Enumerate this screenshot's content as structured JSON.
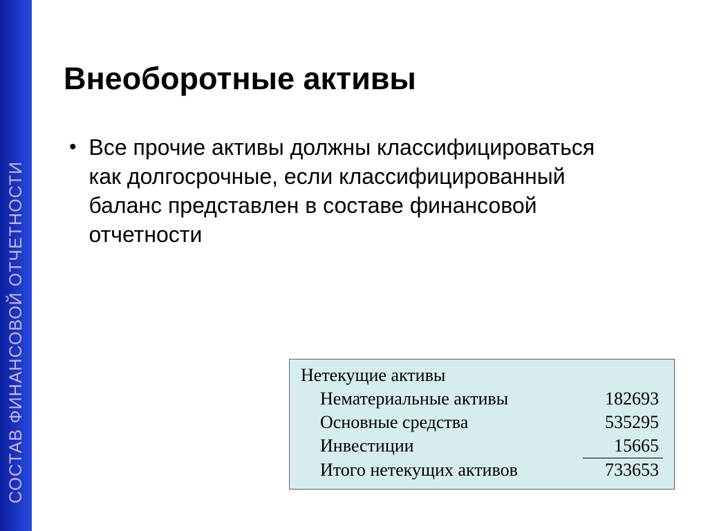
{
  "sidebar": {
    "label": "СОСТАВ ФИНАНСОВОЙ ОТЧЕТНОСТИ",
    "gradient_from": "#0a1e9e",
    "gradient_to": "#2a4be0",
    "text_color": "#c7b3e6"
  },
  "title": "Внеоборотные активы",
  "bullet": {
    "text": "Все прочие активы должны классифицироваться как долгосрочные, если классифицированный баланс представлен в составе финансовой отчетности"
  },
  "assets_table": {
    "background_color": "#d7eded",
    "border_color": "#5a5a8a",
    "header": "Нетекущие активы",
    "rows": [
      {
        "label": "Нематериальные активы",
        "value": "182693"
      },
      {
        "label": "Основные средства",
        "value": "535295"
      },
      {
        "label": "Инвестиции",
        "value": "15665"
      }
    ],
    "total": {
      "label": "Итого нетекущих активов",
      "value": "733653"
    }
  }
}
